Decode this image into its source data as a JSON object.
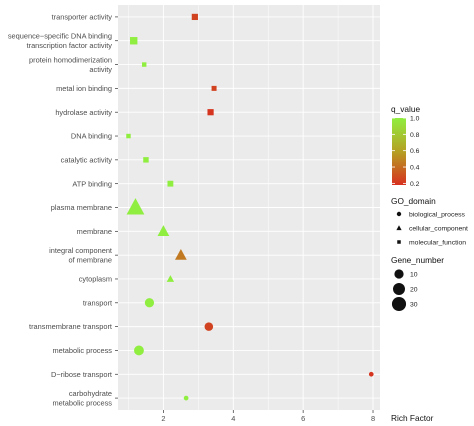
{
  "chart_data": {
    "type": "scatter",
    "xlabel": "Rich Factor",
    "ylabel": "",
    "xlim": [
      0.7,
      8.2
    ],
    "x_ticks": [
      2,
      4,
      6,
      8
    ],
    "grid": true,
    "legend_placement": "right",
    "colors": {
      "panel": "#ebebeb",
      "grid": "#ffffff",
      "q_low": "#d7301f",
      "q_mid": "#b5a023",
      "q_high": "#90ee40"
    },
    "categories": [
      "transporter activity",
      "sequence−specific DNA binding transcription factor activity",
      "protein homodimerization activity",
      "metal ion binding",
      "hydrolase activity",
      "DNA binding",
      "catalytic activity",
      "ATP binding",
      "plasma membrane",
      "membrane",
      "integral component of membrane",
      "cytoplasm",
      "transport",
      "transmembrane transport",
      "metabolic process",
      "D−ribose transport",
      "carbohydrate metabolic process"
    ],
    "category_lines": [
      [
        "transporter activity"
      ],
      [
        "sequence−specific DNA binding",
        "transcription factor activity"
      ],
      [
        "protein homodimerization",
        "activity"
      ],
      [
        "metal ion binding"
      ],
      [
        "hydrolase activity"
      ],
      [
        "DNA binding"
      ],
      [
        "catalytic activity"
      ],
      [
        "ATP binding"
      ],
      [
        "plasma membrane"
      ],
      [
        "membrane"
      ],
      [
        "integral component",
        "of membrane"
      ],
      [
        "cytoplasm"
      ],
      [
        "transport"
      ],
      [
        "transmembrane transport"
      ],
      [
        "metabolic process"
      ],
      [
        "D−ribose transport"
      ],
      [
        "carbohydrate",
        "metabolic process"
      ]
    ],
    "points": [
      {
        "category": "transporter activity",
        "rich_factor": 2.9,
        "q_value": 0.25,
        "go_domain": "molecular_function",
        "gene_number": 6
      },
      {
        "category": "sequence−specific DNA binding transcription factor activity",
        "rich_factor": 1.15,
        "q_value": 1.0,
        "go_domain": "molecular_function",
        "gene_number": 10
      },
      {
        "category": "protein homodimerization activity",
        "rich_factor": 1.45,
        "q_value": 1.0,
        "go_domain": "molecular_function",
        "gene_number": 2
      },
      {
        "category": "metal ion binding",
        "rich_factor": 3.45,
        "q_value": 0.25,
        "go_domain": "molecular_function",
        "gene_number": 3
      },
      {
        "category": "hydrolase activity",
        "rich_factor": 3.35,
        "q_value": 0.2,
        "go_domain": "molecular_function",
        "gene_number": 6
      },
      {
        "category": "DNA binding",
        "rich_factor": 1.0,
        "q_value": 1.0,
        "go_domain": "molecular_function",
        "gene_number": 2
      },
      {
        "category": "catalytic activity",
        "rich_factor": 1.5,
        "q_value": 1.0,
        "go_domain": "molecular_function",
        "gene_number": 4
      },
      {
        "category": "ATP binding",
        "rich_factor": 2.2,
        "q_value": 1.0,
        "go_domain": "molecular_function",
        "gene_number": 5
      },
      {
        "category": "plasma membrane",
        "rich_factor": 1.2,
        "q_value": 1.0,
        "go_domain": "cellular_component",
        "gene_number": 35
      },
      {
        "category": "membrane",
        "rich_factor": 2.0,
        "q_value": 1.0,
        "go_domain": "cellular_component",
        "gene_number": 12
      },
      {
        "category": "integral component of membrane",
        "rich_factor": 2.5,
        "q_value": 0.45,
        "go_domain": "cellular_component",
        "gene_number": 12
      },
      {
        "category": "cytoplasm",
        "rich_factor": 2.2,
        "q_value": 1.0,
        "go_domain": "cellular_component",
        "gene_number": 3
      },
      {
        "category": "transport",
        "rich_factor": 1.6,
        "q_value": 1.0,
        "go_domain": "biological_process",
        "gene_number": 10
      },
      {
        "category": "transmembrane transport",
        "rich_factor": 3.3,
        "q_value": 0.25,
        "go_domain": "biological_process",
        "gene_number": 8
      },
      {
        "category": "metabolic process",
        "rich_factor": 1.3,
        "q_value": 1.0,
        "go_domain": "biological_process",
        "gene_number": 12
      },
      {
        "category": "D−ribose transport",
        "rich_factor": 7.95,
        "q_value": 0.2,
        "go_domain": "biological_process",
        "gene_number": 1
      },
      {
        "category": "carbohydrate metabolic process",
        "rich_factor": 2.65,
        "q_value": 1.0,
        "go_domain": "biological_process",
        "gene_number": 1
      }
    ],
    "legend": {
      "color": {
        "title": "q_value",
        "ticks": [
          1.0,
          0.8,
          0.6,
          0.4,
          0.2
        ],
        "tick_labels": [
          "1.0",
          "0.8",
          "0.6",
          "0.4",
          "0.2"
        ],
        "range": [
          0.18,
          1.0
        ]
      },
      "shape": {
        "title": "GO_domain",
        "items": [
          {
            "label": "biological_process",
            "shape": "circle"
          },
          {
            "label": "cellular_component",
            "shape": "triangle"
          },
          {
            "label": "molecular_function",
            "shape": "square"
          }
        ]
      },
      "size": {
        "title": "Gene_number",
        "items": [
          {
            "label": "10",
            "value": 10
          },
          {
            "label": "20",
            "value": 20
          },
          {
            "label": "30",
            "value": 30
          }
        ]
      }
    }
  }
}
